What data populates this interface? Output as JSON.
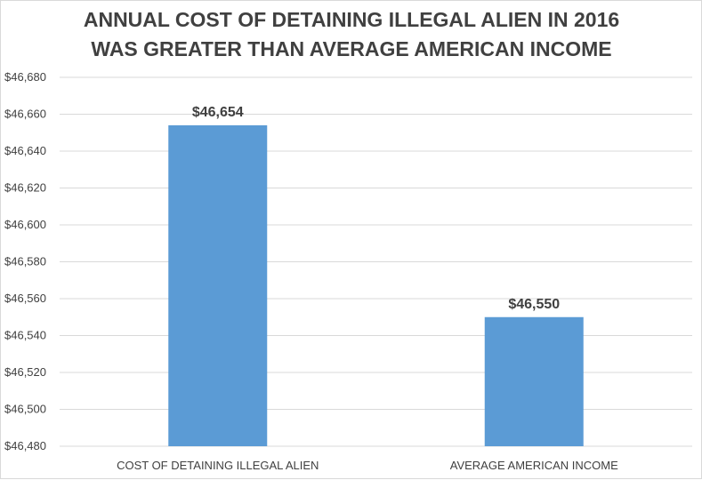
{
  "chart_data": {
    "type": "bar",
    "title": [
      "ANNUAL COST OF DETAINING ILLEGAL ALIEN IN 2016",
      "WAS GREATER THAN AVERAGE AMERICAN INCOME"
    ],
    "categories": [
      "COST OF DETAINING ILLEGAL ALIEN",
      "AVERAGE AMERICAN INCOME"
    ],
    "values": [
      46654,
      46550
    ],
    "data_labels": [
      "$46,654",
      "$46,550"
    ],
    "ylim": [
      46480,
      46680
    ],
    "yticks": [
      46480,
      46500,
      46520,
      46540,
      46560,
      46580,
      46600,
      46620,
      46640,
      46660,
      46680
    ],
    "ytick_labels": [
      "$46,480",
      "$46,500",
      "$46,520",
      "$46,540",
      "$46,560",
      "$46,580",
      "$46,600",
      "$46,620",
      "$46,640",
      "$46,660",
      "$46,680"
    ],
    "xlabel": "",
    "ylabel": "",
    "grid": true,
    "bar_color": "#5b9bd5",
    "text_color": "#404040",
    "grid_color": "#d9d9d9"
  }
}
